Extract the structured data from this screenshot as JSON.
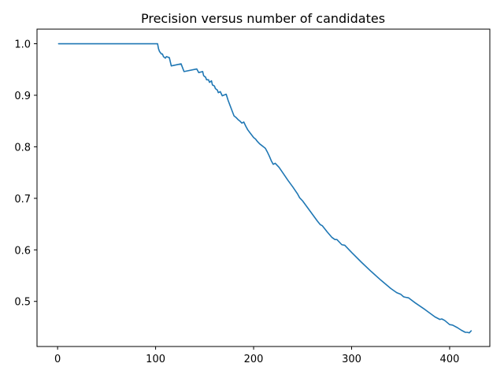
{
  "colors": {
    "series": "#1f77b4",
    "axis": "#000000",
    "background": "#ffffff"
  },
  "chart_data": {
    "type": "line",
    "title": "Precision versus number of candidates",
    "xlabel": "",
    "ylabel": "",
    "xlim": [
      -21,
      441
    ],
    "ylim": [
      0.4125,
      1.0283
    ],
    "x_ticks": [
      0,
      100,
      200,
      300,
      400
    ],
    "y_ticks": [
      0.5,
      0.6,
      0.7,
      0.8,
      0.9,
      1.0
    ],
    "x_tick_labels": [
      "0",
      "100",
      "200",
      "300",
      "400"
    ],
    "y_tick_labels": [
      "0.5",
      "0.6",
      "0.7",
      "0.8",
      "0.9",
      "1.0"
    ],
    "grid": false,
    "legend": "none",
    "series": [
      {
        "x": [
          1,
          102,
          103,
          104,
          106,
          107,
          108,
          110,
          111,
          114,
          116,
          126,
          129,
          142,
          144,
          148,
          149,
          151,
          152,
          154,
          155,
          157,
          158,
          160,
          161,
          163,
          164,
          166,
          168,
          172,
          174,
          176,
          178,
          180,
          182,
          184,
          186,
          188,
          190,
          192,
          194,
          196,
          198,
          200,
          202,
          204,
          206,
          208,
          210,
          212,
          214,
          216,
          218,
          220,
          222,
          224,
          226,
          230,
          235,
          240,
          245,
          247,
          250,
          255,
          260,
          265,
          268,
          270,
          275,
          280,
          283,
          285,
          288,
          290,
          293,
          300,
          310,
          320,
          330,
          340,
          346,
          350,
          353,
          355,
          358,
          365,
          375,
          385,
          390,
          392,
          395,
          400,
          403,
          408,
          412,
          416,
          418,
          420,
          422
        ],
        "values": [
          1.0,
          1.0,
          0.99,
          0.985,
          0.98,
          0.98,
          0.975,
          0.972,
          0.975,
          0.973,
          0.957,
          0.961,
          0.946,
          0.951,
          0.944,
          0.946,
          0.938,
          0.935,
          0.93,
          0.93,
          0.925,
          0.928,
          0.92,
          0.918,
          0.913,
          0.91,
          0.905,
          0.907,
          0.899,
          0.902,
          0.89,
          0.88,
          0.87,
          0.86,
          0.857,
          0.853,
          0.85,
          0.846,
          0.848,
          0.84,
          0.833,
          0.828,
          0.823,
          0.818,
          0.815,
          0.81,
          0.806,
          0.803,
          0.8,
          0.797,
          0.79,
          0.782,
          0.773,
          0.766,
          0.768,
          0.764,
          0.76,
          0.749,
          0.735,
          0.722,
          0.708,
          0.701,
          0.695,
          0.682,
          0.669,
          0.656,
          0.649,
          0.647,
          0.635,
          0.624,
          0.62,
          0.62,
          0.614,
          0.61,
          0.609,
          0.595,
          0.576,
          0.558,
          0.541,
          0.525,
          0.517,
          0.514,
          0.509,
          0.508,
          0.507,
          0.497,
          0.484,
          0.47,
          0.465,
          0.466,
          0.463,
          0.455,
          0.454,
          0.449,
          0.444,
          0.44,
          0.44,
          0.439,
          0.443
        ]
      }
    ]
  }
}
